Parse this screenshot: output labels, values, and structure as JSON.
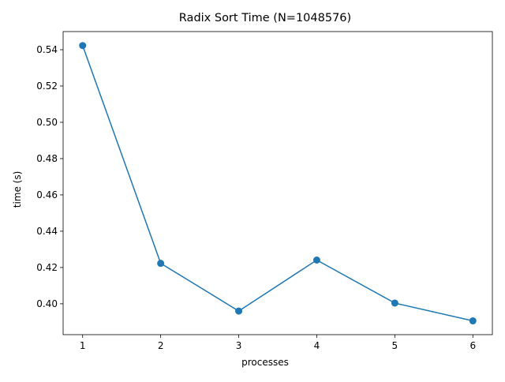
{
  "chart_data": {
    "type": "line",
    "title": "Radix Sort Time (N=1048576)",
    "xlabel": "processes",
    "ylabel": "time (s)",
    "x": [
      1,
      2,
      3,
      4,
      5,
      6
    ],
    "series": [
      {
        "values": [
          0.5423,
          0.4223,
          0.396,
          0.4241,
          0.4004,
          0.3906
        ],
        "color": "#1f77b4",
        "marker": "circle"
      }
    ],
    "xticks": [
      "1",
      "2",
      "3",
      "4",
      "5",
      "6"
    ],
    "yticks": [
      "0.40",
      "0.42",
      "0.44",
      "0.46",
      "0.48",
      "0.50",
      "0.52",
      "0.54"
    ],
    "xlim": [
      0.75,
      6.25
    ],
    "ylim": [
      0.383,
      0.55
    ],
    "grid": false,
    "legend": "none"
  }
}
